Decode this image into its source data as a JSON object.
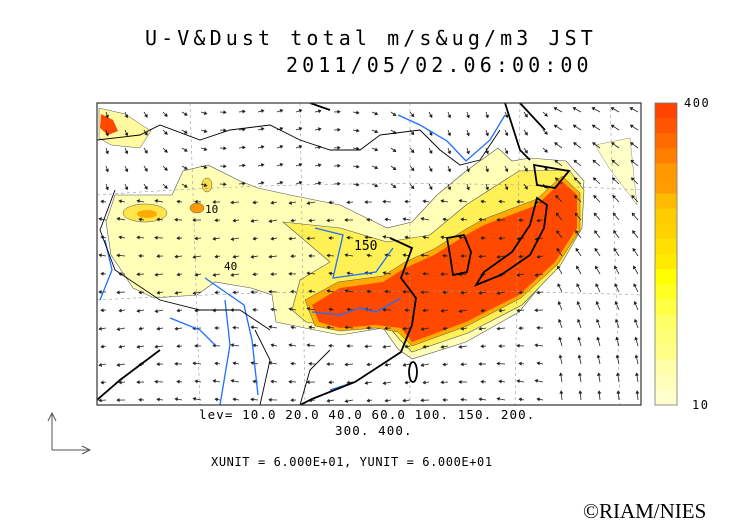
{
  "header": {
    "title": "U-V&Dust total m/s&ug/m3 JST",
    "datetime": "2011/05/02.06:00:00"
  },
  "map": {
    "contour_label_150": "150",
    "contour_label_10": "10",
    "contour_label_40": "40"
  },
  "legend": {
    "levels_line1": "lev= 10.0 20.0 40.0 60.0 100. 150. 200.",
    "levels_line2": "300. 400.",
    "units": "XUNIT = 6.000E+01, YUNIT = 6.000E+01"
  },
  "colorbar": {
    "max_label": "400",
    "min_label": "10",
    "colors": [
      "#ff4400",
      "#ff5500",
      "#ff6a00",
      "#ff7f00",
      "#ff9900",
      "#ff9c00",
      "#ffbb00",
      "#ffcc00",
      "#ffd200",
      "#ffe000",
      "#ffea00",
      "#ffff00",
      "#ffff22",
      "#ffff44",
      "#ffff66",
      "#ffff77",
      "#ffff88",
      "#ffffaa",
      "#ffffbb",
      "#ffffcc"
    ]
  },
  "colors": {
    "river": "#1e6fff",
    "coast": "#000000",
    "dust_high": "#ff4400",
    "dust_mid": "#ffdd00",
    "dust_low": "#ffffaa"
  },
  "footer": {
    "copyright": "©RIAM/NIES"
  }
}
